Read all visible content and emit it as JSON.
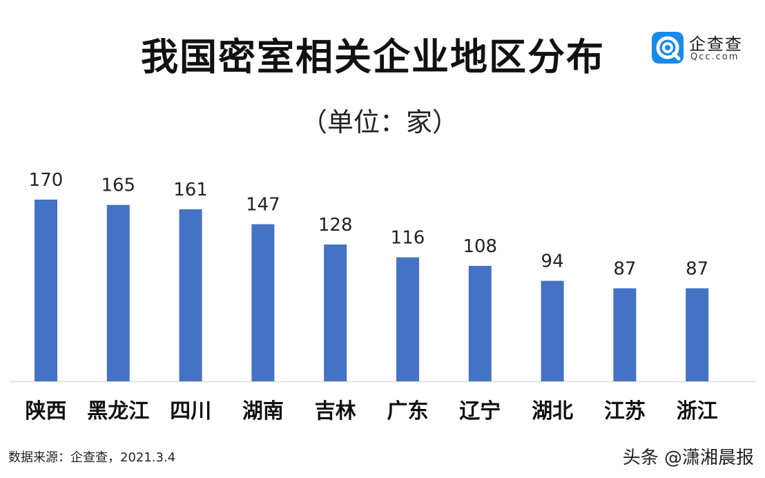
{
  "header": {
    "title": "我国密室相关企业地区分布",
    "subtitle": "（单位：家）"
  },
  "logo": {
    "name": "企查查",
    "sub": "Qcc.com",
    "color": "#1a8ae6"
  },
  "footer": {
    "source": "数据来源：企查查，2021.3.4",
    "watermark": "头条 @潇湘晨报"
  },
  "colors": {
    "bar": "#4472c4",
    "axis": "#d9d9d9"
  },
  "chart_data": {
    "type": "bar",
    "title": "我国密室相关企业地区分布",
    "subtitle": "（单位：家）",
    "categories": [
      "陕西",
      "黑龙江",
      "四川",
      "湖南",
      "吉林",
      "广东",
      "辽宁",
      "湖北",
      "江苏",
      "浙江"
    ],
    "values": [
      170,
      165,
      161,
      147,
      128,
      116,
      108,
      94,
      87,
      87
    ],
    "ylim": [
      0,
      180
    ],
    "grid": false,
    "legend": "none"
  }
}
